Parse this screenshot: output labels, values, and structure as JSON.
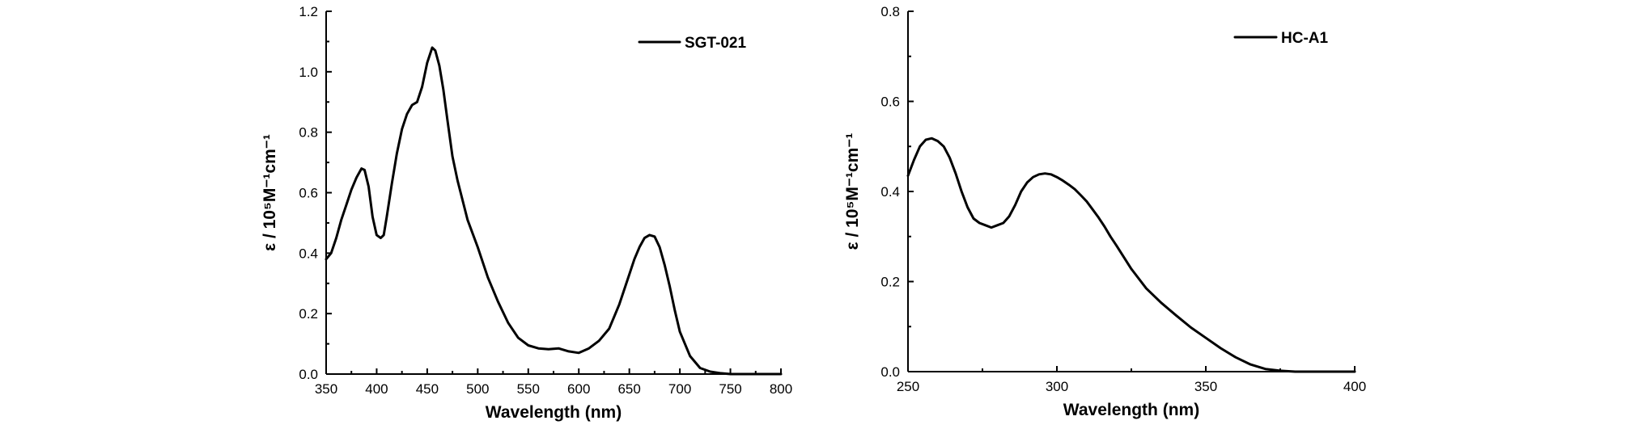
{
  "chart_data": [
    {
      "type": "line",
      "xlabel": "Wavelength (nm)",
      "ylabel": "ε / 10⁵M⁻¹cm⁻¹",
      "xlim": [
        350,
        800
      ],
      "ylim": [
        0.0,
        1.2
      ],
      "xticks": [
        350,
        400,
        450,
        500,
        550,
        600,
        650,
        700,
        750,
        800
      ],
      "yticks": [
        0.0,
        0.2,
        0.4,
        0.6,
        0.8,
        1.0,
        1.2
      ],
      "xtick_labels": [
        "350",
        "400",
        "450",
        "500",
        "550",
        "600",
        "650",
        "700",
        "750",
        "800"
      ],
      "ytick_labels": [
        "0.0",
        "0.2",
        "0.4",
        "0.6",
        "0.8",
        "1.0",
        "1.2"
      ],
      "grid": false,
      "legend_position": "top-right",
      "series": [
        {
          "name": "SGT-021",
          "color": "#000000",
          "x": [
            350,
            355,
            360,
            365,
            370,
            375,
            380,
            385,
            388,
            392,
            396,
            400,
            404,
            407,
            410,
            415,
            420,
            425,
            430,
            435,
            440,
            445,
            450,
            455,
            458,
            462,
            466,
            470,
            475,
            480,
            490,
            500,
            510,
            520,
            530,
            540,
            550,
            560,
            570,
            580,
            590,
            600,
            610,
            620,
            630,
            640,
            650,
            655,
            660,
            665,
            670,
            675,
            680,
            685,
            690,
            695,
            700,
            710,
            720,
            730,
            740,
            750,
            760,
            780,
            800
          ],
          "y": [
            0.38,
            0.4,
            0.45,
            0.51,
            0.56,
            0.61,
            0.65,
            0.68,
            0.675,
            0.62,
            0.52,
            0.46,
            0.45,
            0.46,
            0.52,
            0.63,
            0.73,
            0.81,
            0.86,
            0.89,
            0.9,
            0.95,
            1.03,
            1.08,
            1.07,
            1.02,
            0.94,
            0.84,
            0.72,
            0.64,
            0.51,
            0.42,
            0.32,
            0.24,
            0.17,
            0.12,
            0.095,
            0.085,
            0.082,
            0.085,
            0.075,
            0.07,
            0.085,
            0.11,
            0.15,
            0.23,
            0.33,
            0.38,
            0.42,
            0.45,
            0.46,
            0.455,
            0.42,
            0.36,
            0.29,
            0.21,
            0.14,
            0.06,
            0.02,
            0.008,
            0.003,
            0.0,
            0.0,
            0.0,
            0.0
          ]
        }
      ]
    },
    {
      "type": "line",
      "xlabel": "Wavelength (nm)",
      "ylabel": "ε / 10⁵M⁻¹cm⁻¹",
      "xlim": [
        250,
        400
      ],
      "ylim": [
        0.0,
        0.8
      ],
      "xticks": [
        250,
        300,
        350,
        400
      ],
      "yticks": [
        0.0,
        0.2,
        0.4,
        0.6,
        0.8
      ],
      "xtick_labels": [
        "250",
        "300",
        "350",
        "400"
      ],
      "ytick_labels": [
        "0.0",
        "0.2",
        "0.4",
        "0.6",
        "0.8"
      ],
      "grid": false,
      "legend_position": "top-right",
      "series": [
        {
          "name": "HC-A1",
          "color": "#000000",
          "x": [
            250,
            252,
            254,
            256,
            258,
            260,
            262,
            264,
            266,
            268,
            270,
            272,
            274,
            276,
            278,
            280,
            282,
            284,
            286,
            288,
            290,
            292,
            294,
            296,
            298,
            300,
            302,
            304,
            306,
            308,
            310,
            312,
            314,
            316,
            318,
            320,
            325,
            330,
            335,
            340,
            345,
            350,
            355,
            360,
            365,
            370,
            375,
            380,
            385,
            390,
            395,
            400
          ],
          "y": [
            0.435,
            0.47,
            0.5,
            0.515,
            0.518,
            0.512,
            0.5,
            0.475,
            0.44,
            0.4,
            0.365,
            0.34,
            0.33,
            0.325,
            0.32,
            0.325,
            0.33,
            0.345,
            0.37,
            0.4,
            0.42,
            0.432,
            0.438,
            0.44,
            0.438,
            0.432,
            0.424,
            0.415,
            0.405,
            0.392,
            0.378,
            0.36,
            0.342,
            0.322,
            0.3,
            0.28,
            0.228,
            0.185,
            0.153,
            0.125,
            0.098,
            0.075,
            0.052,
            0.032,
            0.016,
            0.006,
            0.002,
            0.0,
            0.0,
            0.0,
            0.0,
            0.0
          ]
        }
      ]
    }
  ]
}
